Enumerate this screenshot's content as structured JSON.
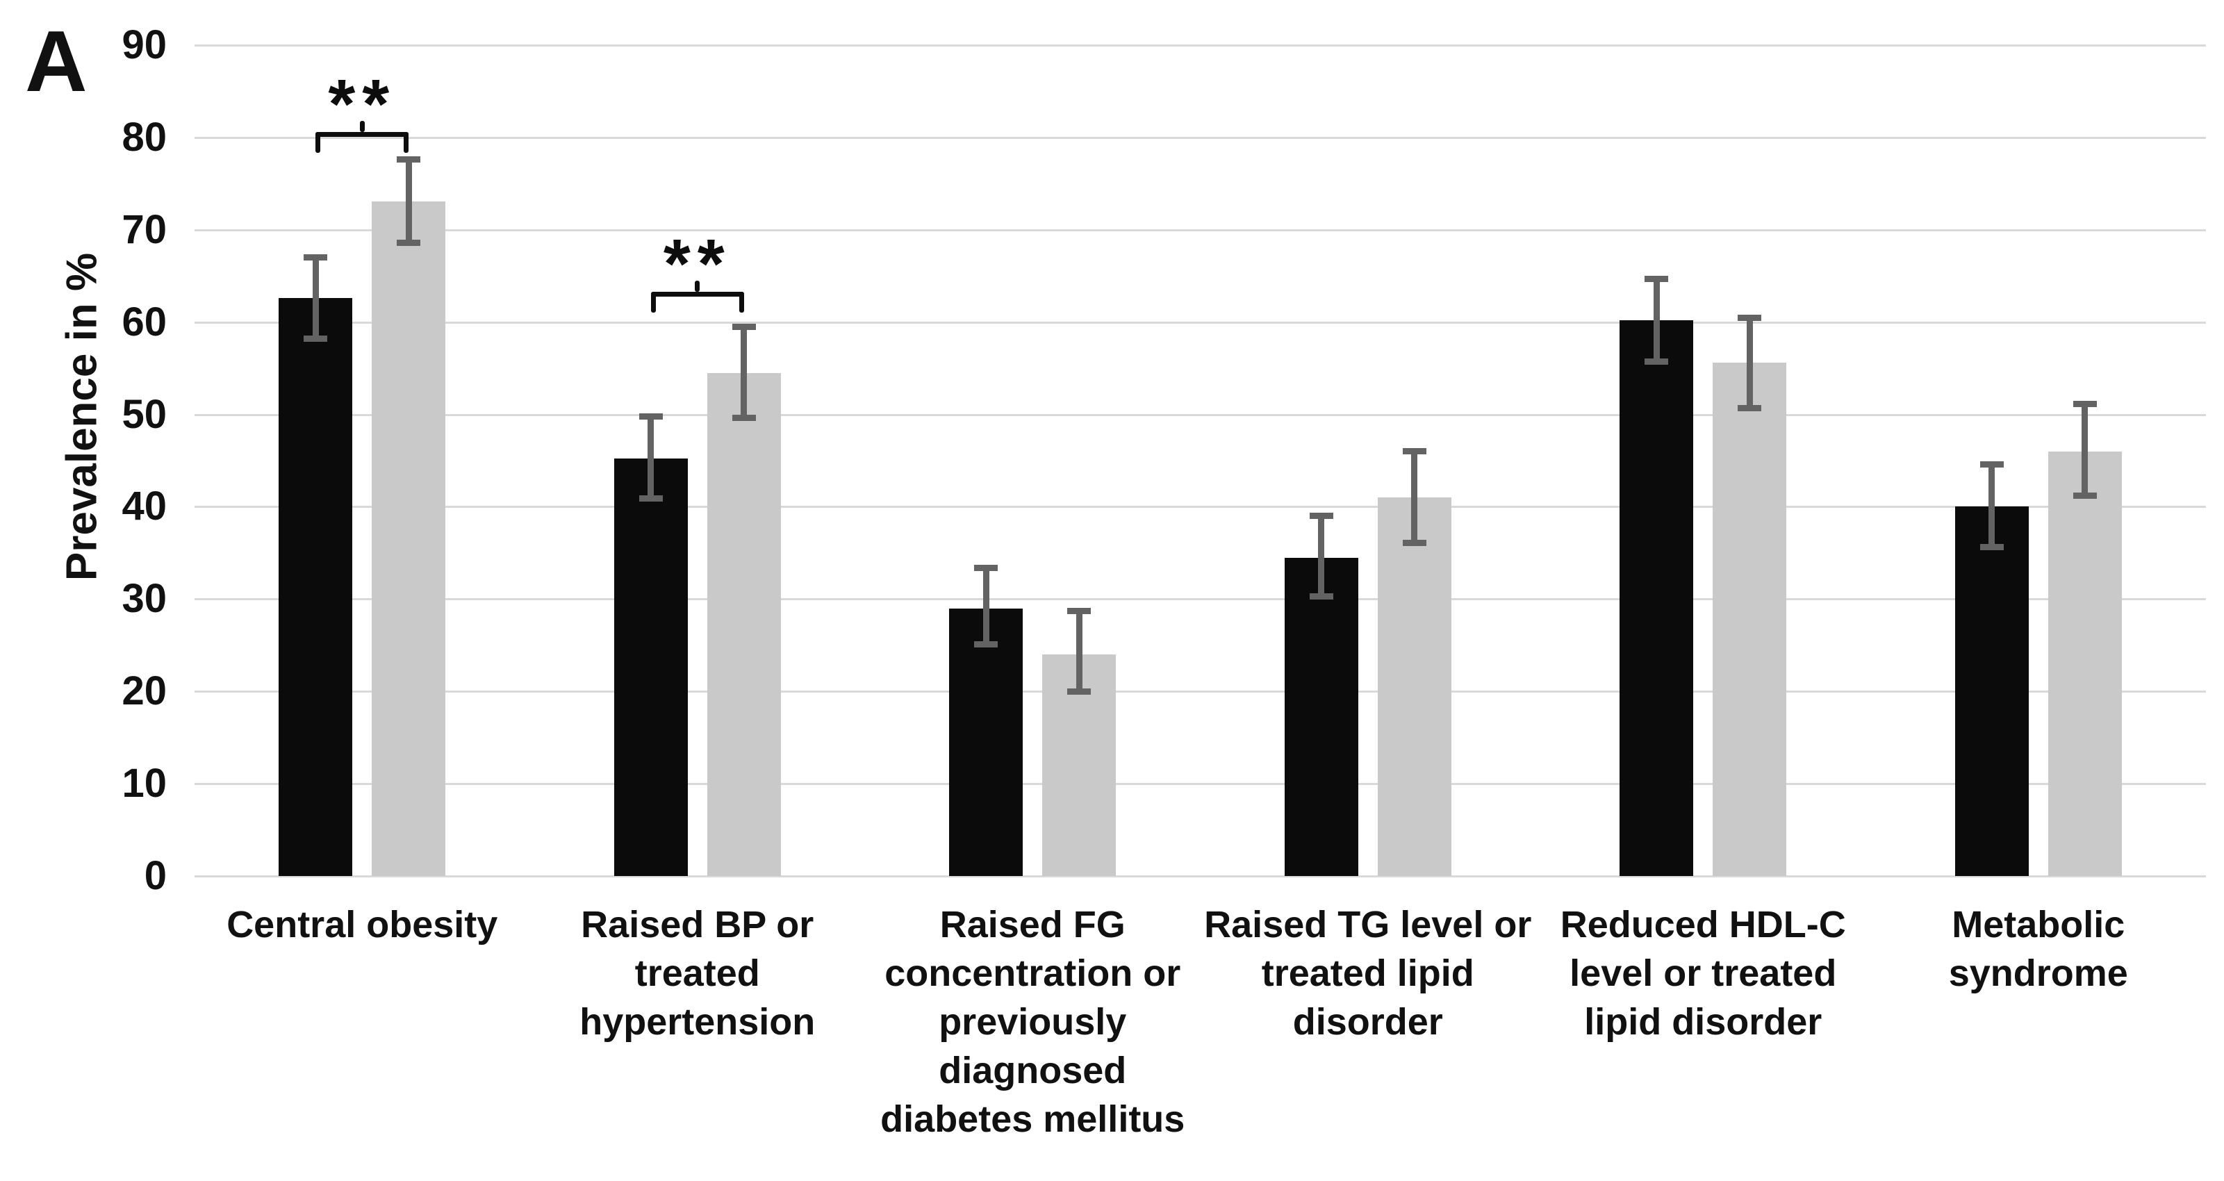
{
  "figure": {
    "panel_label": "A"
  },
  "chart_data": {
    "type": "bar",
    "title": "",
    "xlabel": "",
    "ylabel": "Prevalence in %",
    "ylim": [
      0,
      90
    ],
    "ytick_step": 10,
    "ytick_labels": [
      "0",
      "10",
      "20",
      "30",
      "40",
      "50",
      "60",
      "70",
      "80",
      "90"
    ],
    "grid": true,
    "legend_position": "none",
    "categories": [
      "Central obesity",
      "Raised BP or\ntreated\nhypertension",
      "Raised FG\nconcentration or\npreviously\ndiagnosed\ndiabetes mellitus",
      "Raised TG level or\ntreated lipid\ndisorder",
      "Reduced HDL-C\nlevel or treated\nlipid disorder",
      "Metabolic\nsyndrome"
    ],
    "series": [
      {
        "name": "series-1-black",
        "color": "#0b0b0b",
        "values": [
          62.6,
          45.2,
          29.0,
          34.5,
          60.2,
          40.0
        ],
        "error_low": [
          58.2,
          40.9,
          25.1,
          30.3,
          55.7,
          35.6
        ],
        "error_high": [
          67.0,
          49.8,
          33.4,
          39.0,
          64.7,
          44.6
        ]
      },
      {
        "name": "series-2-gray",
        "color": "#c9c9c9",
        "values": [
          73.1,
          54.5,
          24.0,
          41.0,
          55.6,
          46.0
        ],
        "error_low": [
          68.6,
          49.6,
          20.0,
          36.1,
          50.7,
          41.2
        ],
        "error_high": [
          77.6,
          59.5,
          28.7,
          46.0,
          60.5,
          51.1
        ]
      }
    ],
    "significance_annotations": [
      {
        "category_index": 0,
        "label": "**",
        "bracket_value": 80.6
      },
      {
        "category_index": 1,
        "label": "**",
        "bracket_value": 63.3
      }
    ],
    "error_bar_color": "#636363",
    "gridline_color": "#d9d9d9"
  }
}
